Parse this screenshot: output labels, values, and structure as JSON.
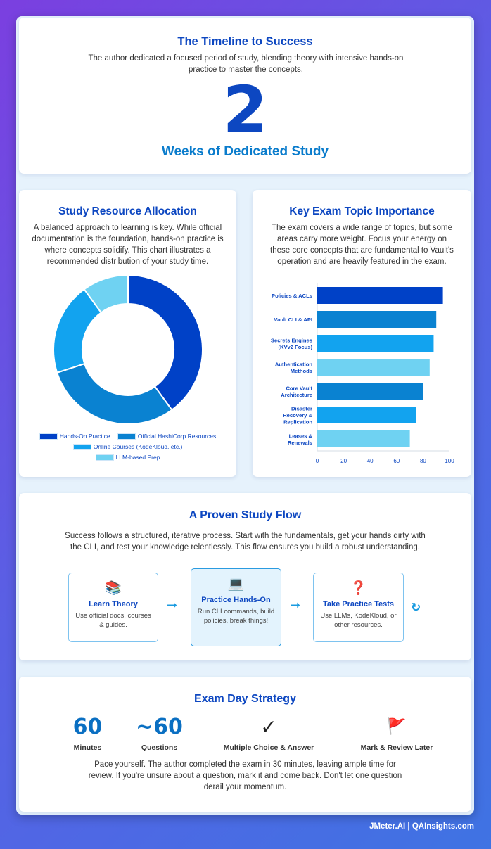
{
  "timeline": {
    "title": "The Timeline to Success",
    "description": "The author dedicated a focused period of study, blending theory with intensive hands-on practice to master the concepts.",
    "number": "2",
    "caption": "Weeks of Dedicated Study"
  },
  "resources": {
    "title": "Study Resource Allocation",
    "description": "A balanced approach to learning is key. While official documentation is the foundation, hands-on practice is where concepts solidify. This chart illustrates a recommended distribution of your study time."
  },
  "topics": {
    "title": "Key Exam Topic Importance",
    "description": "The exam covers a wide range of topics, but some areas carry more weight. Focus your energy on these core concepts that are fundamental to Vault's operation and are heavily featured in the exam."
  },
  "chart_data": [
    {
      "type": "pie",
      "title": "",
      "categories": [
        "Hands-On Practice",
        "Official HashiCorp Resources",
        "Online Courses (KodeKloud, etc.)",
        "LLM-based Prep"
      ],
      "values": [
        40,
        30,
        20,
        10
      ],
      "colors": [
        "#0041c7",
        "#0a82d1",
        "#12a3ef",
        "#6fd2f2"
      ],
      "legend": "bottom"
    },
    {
      "type": "bar",
      "orientation": "horizontal",
      "title": "",
      "categories": [
        [
          "Policies & ACLs"
        ],
        [
          "Vault CLI & API"
        ],
        [
          "Secrets Engines",
          "(KVv2 Focus)"
        ],
        [
          "Authentication",
          "Methods"
        ],
        [
          "Core Vault",
          "Architecture"
        ],
        [
          "Disaster",
          "Recovery &",
          "Replication"
        ],
        [
          "Leases &",
          "Renewals"
        ]
      ],
      "values": [
        95,
        90,
        88,
        85,
        80,
        75,
        70
      ],
      "colors": [
        "#0041c7",
        "#0a82d1",
        "#12a3ef",
        "#6fd2f2",
        "#0a82d1",
        "#12a3ef",
        "#6fd2f2"
      ],
      "xlim": [
        0,
        100
      ],
      "xticks": [
        0,
        20,
        40,
        60,
        80,
        100
      ],
      "grid": false
    }
  ],
  "flow": {
    "title": "A Proven Study Flow",
    "description": "Success follows a structured, iterative process. Start with the fundamentals, get your hands dirty with the CLI, and test your knowledge relentlessly. This flow ensures you build a robust understanding.",
    "steps": [
      {
        "icon": "📚",
        "title": "Learn Theory",
        "desc": "Use official docs, courses & guides."
      },
      {
        "icon": "💻",
        "title": "Practice Hands-On",
        "desc": "Run CLI commands, build policies, break things!"
      },
      {
        "icon": "❓",
        "title": "Take Practice Tests",
        "desc": "Use LLMs, KodeKloud, or other resources."
      }
    ],
    "arrow": "➞",
    "loop": "↻"
  },
  "exam": {
    "title": "Exam Day Strategy",
    "stats": [
      {
        "value": "60",
        "label": "Minutes"
      },
      {
        "value": "~60",
        "label": "Questions"
      },
      {
        "value": "✓",
        "label": "Multiple Choice & Answer"
      },
      {
        "value": "🚩",
        "label": "Mark & Review Later"
      }
    ],
    "description": "Pace yourself. The author completed the exam in 30 minutes, leaving ample time for review. If you're unsure about a question, mark it and come back. Don't let one question derail your momentum."
  },
  "footer": "JMeter.AI | QAInsights.com"
}
